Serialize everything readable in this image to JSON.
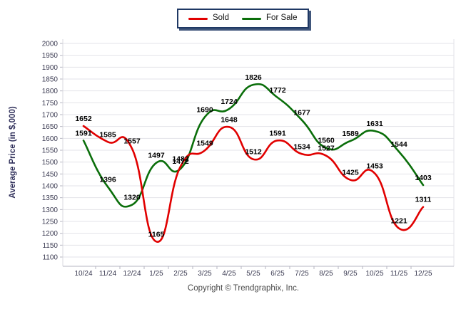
{
  "legend": {
    "items": [
      {
        "label": "Sold",
        "color": "#e10000"
      },
      {
        "label": "For Sale",
        "color": "#0a6e0a"
      }
    ]
  },
  "footer": {
    "copyright": "Copyright © Trendgraphix, Inc."
  },
  "chart_data": {
    "type": "line",
    "title": "",
    "xlabel": "",
    "ylabel": "Average Price (in $,000)",
    "categories": [
      "10/24",
      "11/24",
      "12/24",
      "1/25",
      "2/25",
      "3/25",
      "4/25",
      "5/25",
      "6/25",
      "7/25",
      "8/25",
      "9/25",
      "10/25",
      "11/25",
      "12/25"
    ],
    "series": [
      {
        "name": "Sold",
        "color": "#e10000",
        "values": [
          1652,
          1585,
          1557,
          1165,
          1482,
          1549,
          1648,
          1512,
          1591,
          1534,
          1527,
          1425,
          1453,
          1221,
          1311
        ]
      },
      {
        "name": "For Sale",
        "color": "#0a6e0a",
        "values": [
          1591,
          1396,
          1320,
          1497,
          1472,
          1690,
          1724,
          1826,
          1772,
          1677,
          1560,
          1589,
          1631,
          1544,
          1403
        ]
      }
    ],
    "ylim": [
      1100,
      2000
    ],
    "ytick_step": 50,
    "grid": true,
    "smooth": true,
    "data_labels": true,
    "legend_position": "top-center",
    "colors": {
      "grid_line": "#e3e3e8",
      "axis_line": "#b6b6c2",
      "tick_label": "#3b3b52",
      "data_label": "#000000",
      "axis_title": "#2f2f5a",
      "legend_border": "#1f3864"
    }
  }
}
